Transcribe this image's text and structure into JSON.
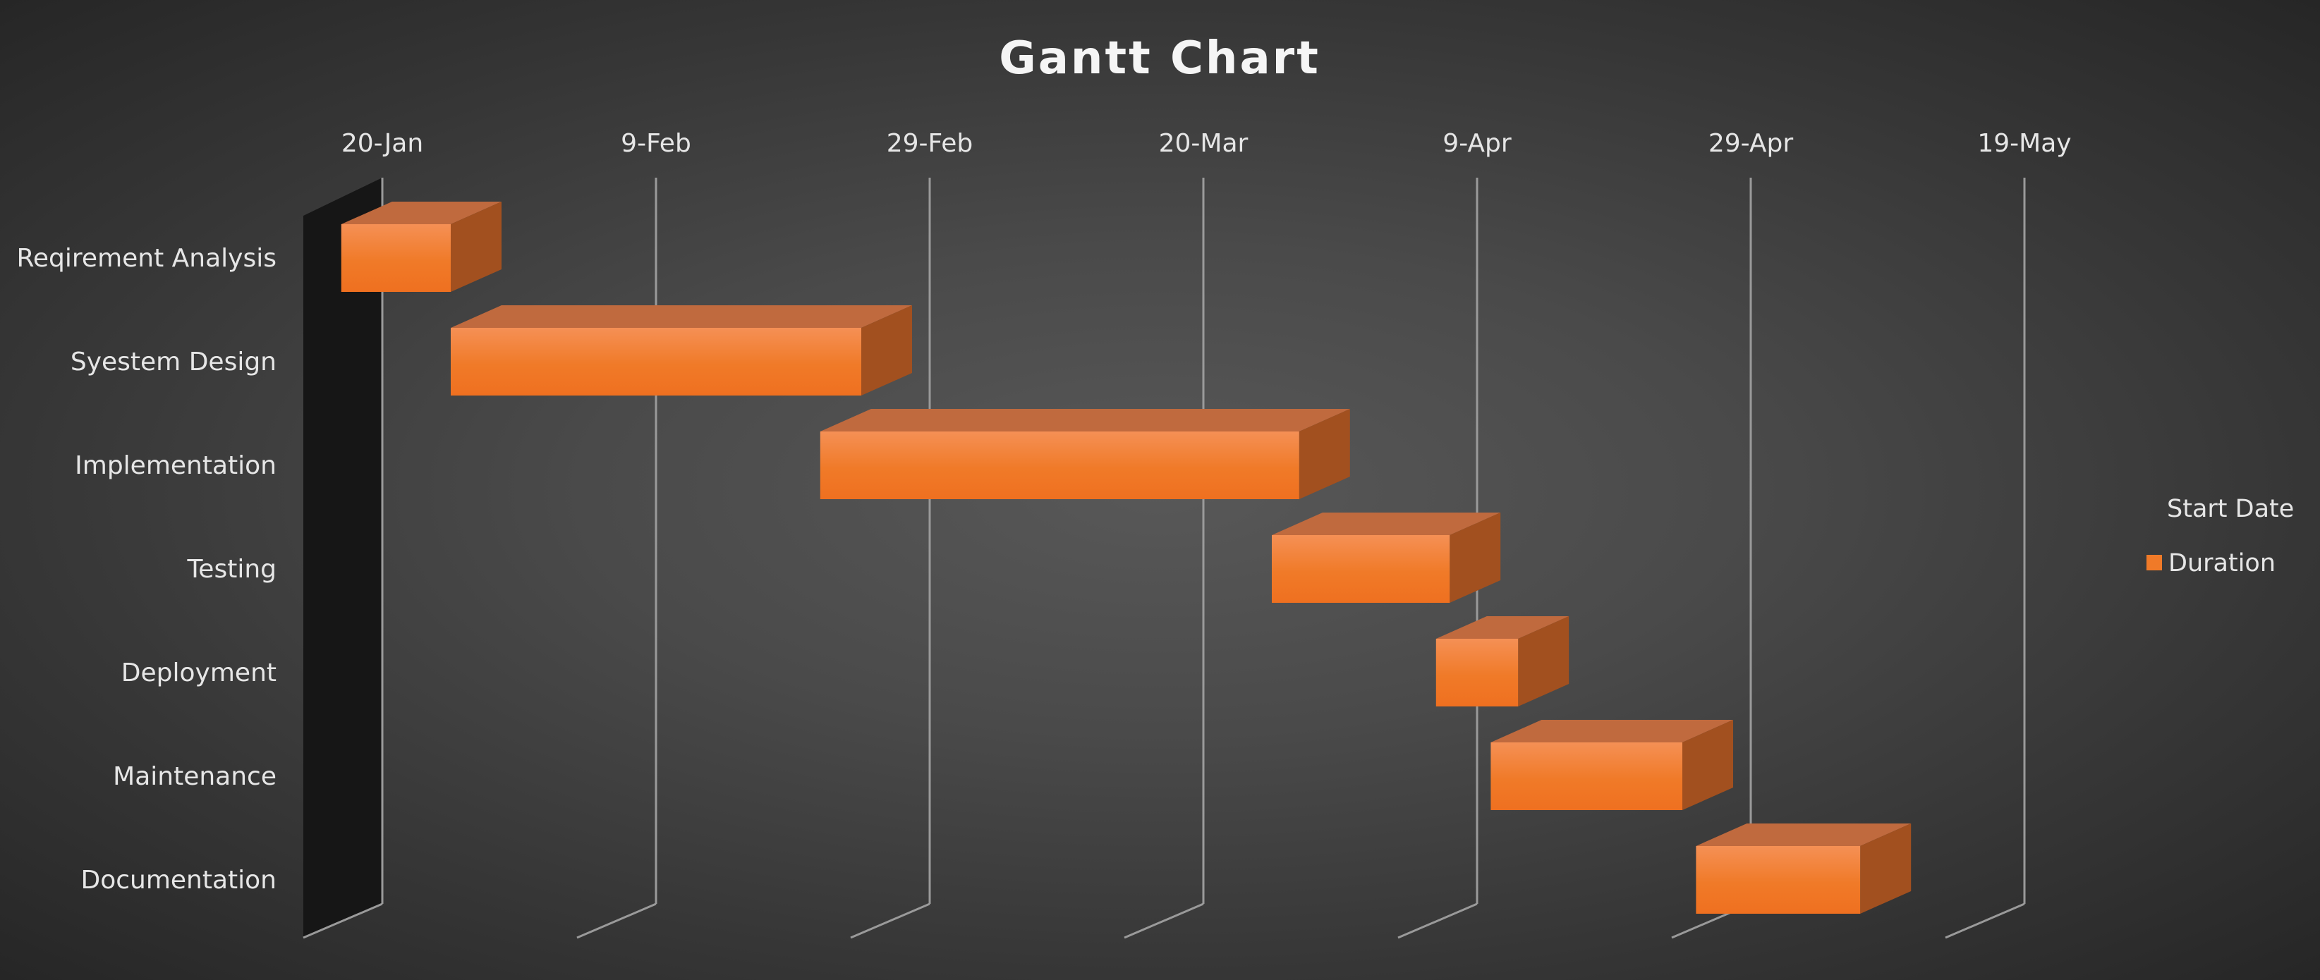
{
  "chart_data": {
    "type": "bar",
    "orientation": "horizontal",
    "stacked": true,
    "three_d": true,
    "title": "Gantt Chart",
    "categories": [
      "Reqirement Analysis",
      "Syestem Design",
      "Implementation",
      "Testing",
      "Deployment",
      "Maintenance",
      "Documentation"
    ],
    "series": [
      {
        "name": "Start Date",
        "visible": false,
        "values": [
          "2024-01-17",
          "2024-01-25",
          "2024-02-21",
          "2024-03-25",
          "2024-04-06",
          "2024-04-10",
          "2024-04-25"
        ]
      },
      {
        "name": "Duration",
        "unit": "days",
        "color": "#f07a28",
        "values": [
          8,
          30,
          35,
          13,
          6,
          14,
          12
        ]
      }
    ],
    "x_ticks": [
      "20-Jan",
      "9-Feb",
      "29-Feb",
      "20-Mar",
      "9-Apr",
      "29-Apr",
      "19-May"
    ],
    "x_tick_dates": [
      "2024-01-20",
      "2024-02-09",
      "2024-02-29",
      "2024-03-20",
      "2024-04-09",
      "2024-04-29",
      "2024-05-19"
    ],
    "xlim": [
      "2024-01-14",
      "2024-05-19"
    ],
    "xlabel": "",
    "ylabel": "",
    "grid": true,
    "legend": {
      "position": "right",
      "entries": [
        "Start Date",
        "Duration"
      ]
    },
    "colors": {
      "background": "#4a4a4a",
      "bar_front": "#f07a28",
      "bar_top": "#c06a3e",
      "bar_side": "#a2501f",
      "gridline": "#9a9a9a",
      "wall": "#161616",
      "text": "#e6e6e6"
    }
  }
}
